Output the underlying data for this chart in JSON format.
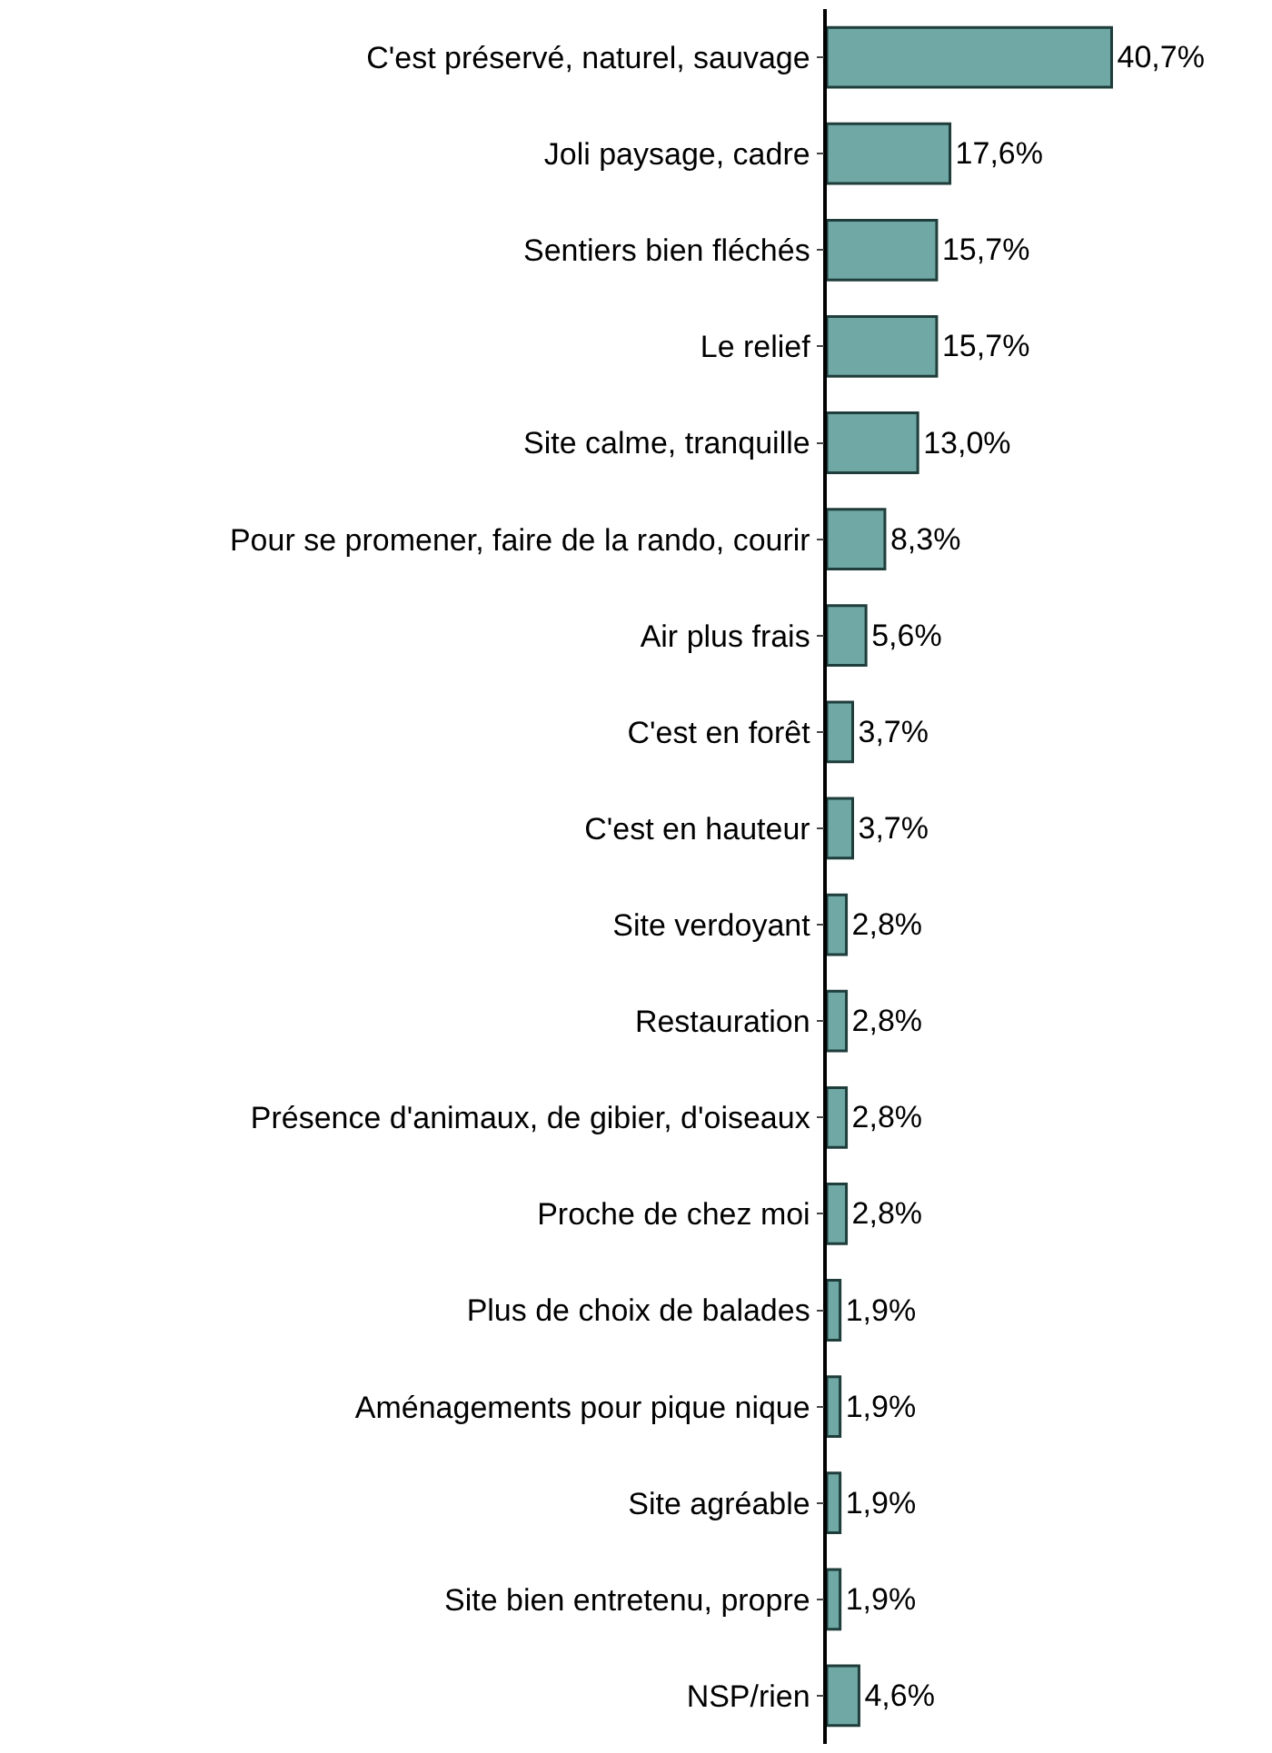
{
  "chart_data": {
    "type": "bar",
    "orientation": "horizontal",
    "categories": [
      "C'est préservé, naturel, sauvage",
      "Joli paysage, cadre",
      "Sentiers bien fléchés",
      "Le relief",
      "Site calme, tranquille",
      "Pour se promener, faire de la rando, courir",
      "Air plus frais",
      "C'est en forêt",
      "C'est en hauteur",
      "Site verdoyant",
      "Restauration",
      "Présence d'animaux, de gibier, d'oiseaux",
      "Proche de chez moi",
      "Plus de choix de balades",
      "Aménagements pour pique nique",
      "Site agréable",
      "Site bien entretenu, propre",
      "NSP/rien"
    ],
    "values": [
      40.7,
      17.6,
      15.7,
      15.7,
      13.0,
      8.3,
      5.6,
      3.7,
      3.7,
      2.8,
      2.8,
      2.8,
      2.8,
      1.9,
      1.9,
      1.9,
      1.9,
      4.6
    ],
    "value_labels": [
      "40,7%",
      "17,6%",
      "15,7%",
      "15,7%",
      "13,0%",
      "8,3%",
      "5,6%",
      "3,7%",
      "3,7%",
      "2,8%",
      "2,8%",
      "2,8%",
      "2,8%",
      "1,9%",
      "1,9%",
      "1,9%",
      "1,9%",
      "4,6%"
    ],
    "color": "#6fa8a4"
  }
}
